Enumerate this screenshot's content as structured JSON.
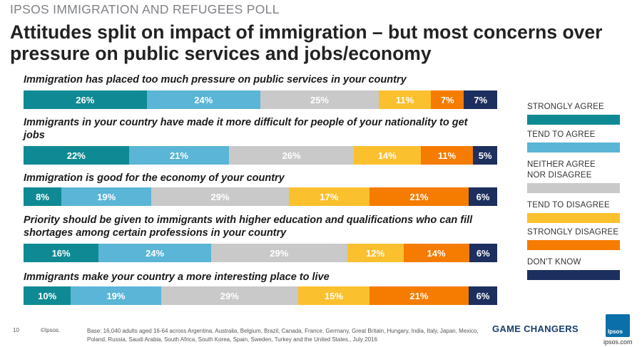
{
  "header": {
    "kicker": "IPSOS IMMIGRATION AND REFUGEES POLL",
    "title": "Attitudes split on impact of immigration – but most concerns over pressure on public services and jobs/economy"
  },
  "chart_data": {
    "type": "bar",
    "orientation": "horizontal-stacked-100",
    "categories": [
      "Immigration has placed too much pressure on public services in your country",
      "Immigrants in your country have made it more difficult for people of your nationality to get jobs",
      "Immigration is good for the economy of your country",
      "Priority should be given to immigrants with higher education and qualifications who can fill shortages among certain professions in your country",
      "Immigrants make your country a more interesting place to live"
    ],
    "series": [
      {
        "name": "STRONGLY AGREE",
        "color": "#0f8a94",
        "values": [
          26,
          22,
          8,
          16,
          10
        ]
      },
      {
        "name": "TEND TO AGREE",
        "color": "#5ab5d6",
        "values": [
          24,
          21,
          19,
          24,
          19
        ]
      },
      {
        "name": "NEITHER AGREE NOR DISAGREE",
        "color": "#c9c9c9",
        "values": [
          25,
          26,
          29,
          29,
          29
        ]
      },
      {
        "name": "TEND TO DISAGREE",
        "color": "#fbc02d",
        "values": [
          11,
          14,
          17,
          12,
          15
        ]
      },
      {
        "name": "STRONGLY DISAGREE",
        "color": "#f57c00",
        "values": [
          7,
          11,
          21,
          14,
          21
        ]
      },
      {
        "name": "DON'T KNOW",
        "color": "#1c2f5e",
        "values": [
          7,
          5,
          6,
          6,
          6
        ]
      }
    ],
    "value_suffix": "%",
    "legend": "right"
  },
  "footer": {
    "page_number": "10",
    "copyright": "©Ipsos.",
    "base": "Base: 16,040 adults aged 16-64 across  Argentina, Australia, Belgium, Brazil, Canada, France, Germany, Great Britain, Hungary, India, Italy, Japan, Mexico, Poland, Russia, Saudi Arabia, South Africa, South Korea, Spain, Sweden, Turkey and the United States., July 2016",
    "brand_tagline": "GAME CHANGERS",
    "logo_text": "Ipsos",
    "website": "ipsos.com"
  }
}
